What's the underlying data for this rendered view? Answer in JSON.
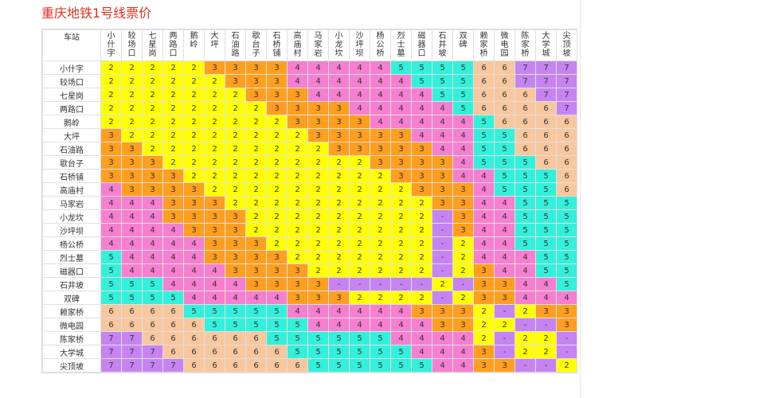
{
  "title": "重庆地铁1号线票价",
  "table": {
    "corner": "车站",
    "stations": [
      "小什字",
      "较场口",
      "七星岗",
      "两路口",
      "鹅岭",
      "大坪",
      "石油路",
      "歇台子",
      "石桥铺",
      "高庙村",
      "马家岩",
      "小龙坎",
      "沙坪坝",
      "杨公桥",
      "烈士墓",
      "磁器口",
      "石井坡",
      "双碑",
      "赖家桥",
      "微电园",
      "陈家桥",
      "大学城",
      "尖顶坡"
    ],
    "rows": [
      [
        "2",
        "2",
        "2",
        "2",
        "2",
        "3",
        "3",
        "3",
        "3",
        "4",
        "4",
        "4",
        "4",
        "4",
        "5",
        "5",
        "5",
        "5",
        "6",
        "6",
        "7",
        "7",
        "7"
      ],
      [
        "2",
        "2",
        "2",
        "2",
        "2",
        "2",
        "3",
        "3",
        "3",
        "4",
        "4",
        "4",
        "4",
        "4",
        "4",
        "5",
        "5",
        "5",
        "6",
        "6",
        "7",
        "7",
        "7"
      ],
      [
        "2",
        "2",
        "2",
        "2",
        "2",
        "2",
        "2",
        "3",
        "3",
        "3",
        "4",
        "4",
        "4",
        "4",
        "4",
        "4",
        "5",
        "5",
        "6",
        "6",
        "6",
        "7",
        "7"
      ],
      [
        "2",
        "2",
        "2",
        "2",
        "2",
        "2",
        "2",
        "2",
        "3",
        "3",
        "3",
        "3",
        "4",
        "4",
        "4",
        "4",
        "4",
        "5",
        "6",
        "6",
        "6",
        "6",
        "7"
      ],
      [
        "2",
        "2",
        "2",
        "2",
        "2",
        "2",
        "2",
        "2",
        "2",
        "3",
        "3",
        "3",
        "3",
        "4",
        "4",
        "4",
        "4",
        "4",
        "5",
        "6",
        "6",
        "6",
        "6"
      ],
      [
        "3",
        "2",
        "2",
        "2",
        "2",
        "2",
        "2",
        "2",
        "2",
        "2",
        "3",
        "3",
        "3",
        "3",
        "3",
        "4",
        "4",
        "4",
        "5",
        "5",
        "6",
        "6",
        "6"
      ],
      [
        "3",
        "3",
        "2",
        "2",
        "2",
        "2",
        "2",
        "2",
        "2",
        "2",
        "2",
        "3",
        "3",
        "3",
        "3",
        "3",
        "4",
        "4",
        "5",
        "5",
        "6",
        "6",
        "6"
      ],
      [
        "3",
        "3",
        "3",
        "2",
        "2",
        "2",
        "2",
        "2",
        "2",
        "2",
        "2",
        "2",
        "2",
        "3",
        "3",
        "3",
        "3",
        "4",
        "5",
        "5",
        "5",
        "6",
        "6"
      ],
      [
        "3",
        "3",
        "3",
        "3",
        "2",
        "2",
        "2",
        "2",
        "2",
        "2",
        "2",
        "2",
        "2",
        "2",
        "3",
        "3",
        "3",
        "4",
        "4",
        "5",
        "5",
        "5",
        "6"
      ],
      [
        "4",
        "3",
        "3",
        "3",
        "3",
        "2",
        "2",
        "2",
        "2",
        "2",
        "2",
        "2",
        "2",
        "2",
        "2",
        "3",
        "3",
        "3",
        "4",
        "5",
        "5",
        "5",
        "6"
      ],
      [
        "4",
        "4",
        "4",
        "3",
        "3",
        "3",
        "2",
        "2",
        "2",
        "2",
        "2",
        "2",
        "2",
        "2",
        "2",
        "2",
        "3",
        "3",
        "4",
        "4",
        "5",
        "5",
        "5"
      ],
      [
        "4",
        "4",
        "4",
        "3",
        "3",
        "3",
        "3",
        "2",
        "2",
        "2",
        "2",
        "2",
        "2",
        "2",
        "2",
        "2",
        "-",
        "3",
        "4",
        "4",
        "5",
        "5",
        "5"
      ],
      [
        "4",
        "4",
        "4",
        "4",
        "3",
        "3",
        "3",
        "2",
        "2",
        "2",
        "2",
        "2",
        "2",
        "2",
        "2",
        "2",
        "-",
        "3",
        "4",
        "4",
        "5",
        "5",
        "5"
      ],
      [
        "4",
        "4",
        "4",
        "4",
        "4",
        "3",
        "3",
        "3",
        "2",
        "2",
        "2",
        "2",
        "2",
        "2",
        "2",
        "2",
        "-",
        "2",
        "4",
        "4",
        "5",
        "5",
        "5"
      ],
      [
        "5",
        "4",
        "4",
        "4",
        "4",
        "3",
        "3",
        "3",
        "3",
        "2",
        "2",
        "2",
        "2",
        "2",
        "2",
        "2",
        "-",
        "2",
        "4",
        "4",
        "4",
        "5",
        "5"
      ],
      [
        "5",
        "4",
        "4",
        "4",
        "4",
        "4",
        "3",
        "3",
        "3",
        "3",
        "2",
        "2",
        "2",
        "2",
        "2",
        "2",
        "-",
        "2",
        "3",
        "4",
        "4",
        "5",
        "5"
      ],
      [
        "5",
        "5",
        "5",
        "4",
        "4",
        "4",
        "4",
        "3",
        "3",
        "3",
        "3",
        "-",
        "-",
        "-",
        "-",
        "-",
        "2",
        "-",
        "3",
        "3",
        "4",
        "4",
        "5"
      ],
      [
        "5",
        "5",
        "5",
        "5",
        "4",
        "4",
        "4",
        "4",
        "4",
        "3",
        "3",
        "3",
        "2",
        "2",
        "2",
        "2",
        "-",
        "2",
        "3",
        "3",
        "4",
        "4",
        "4"
      ],
      [
        "6",
        "6",
        "6",
        "6",
        "5",
        "5",
        "5",
        "5",
        "5",
        "4",
        "4",
        "4",
        "4",
        "4",
        "4",
        "3",
        "3",
        "3",
        "2",
        "-",
        "2",
        "3",
        "3"
      ],
      [
        "6",
        "6",
        "6",
        "6",
        "6",
        "5",
        "5",
        "5",
        "5",
        "5",
        "4",
        "4",
        "4",
        "4",
        "4",
        "4",
        "3",
        "3",
        "2",
        "2",
        "-",
        "-",
        "3"
      ],
      [
        "7",
        "7",
        "6",
        "6",
        "6",
        "6",
        "6",
        "6",
        "5",
        "5",
        "5",
        "5",
        "5",
        "5",
        "4",
        "4",
        "4",
        "4",
        "2",
        "-",
        "2",
        "2",
        "-"
      ],
      [
        "7",
        "7",
        "7",
        "6",
        "6",
        "6",
        "6",
        "6",
        "6",
        "5",
        "5",
        "5",
        "5",
        "5",
        "5",
        "4",
        "4",
        "4",
        "3",
        "-",
        "2",
        "2",
        "-"
      ],
      [
        "7",
        "7",
        "7",
        "7",
        "6",
        "6",
        "6",
        "6",
        "6",
        "6",
        "5",
        "5",
        "5",
        "5",
        "5",
        "5",
        "4",
        "4",
        "3",
        "3",
        "-",
        "-",
        "2"
      ]
    ]
  },
  "colors": {
    "2": "#ffff00",
    "3": "#ff9e1f",
    "4": "#f77fd0",
    "5": "#33f0da",
    "6": "#f8c79e",
    "7": "#c584f2",
    "-": "#c584f2",
    "title": "#e0301e"
  }
}
